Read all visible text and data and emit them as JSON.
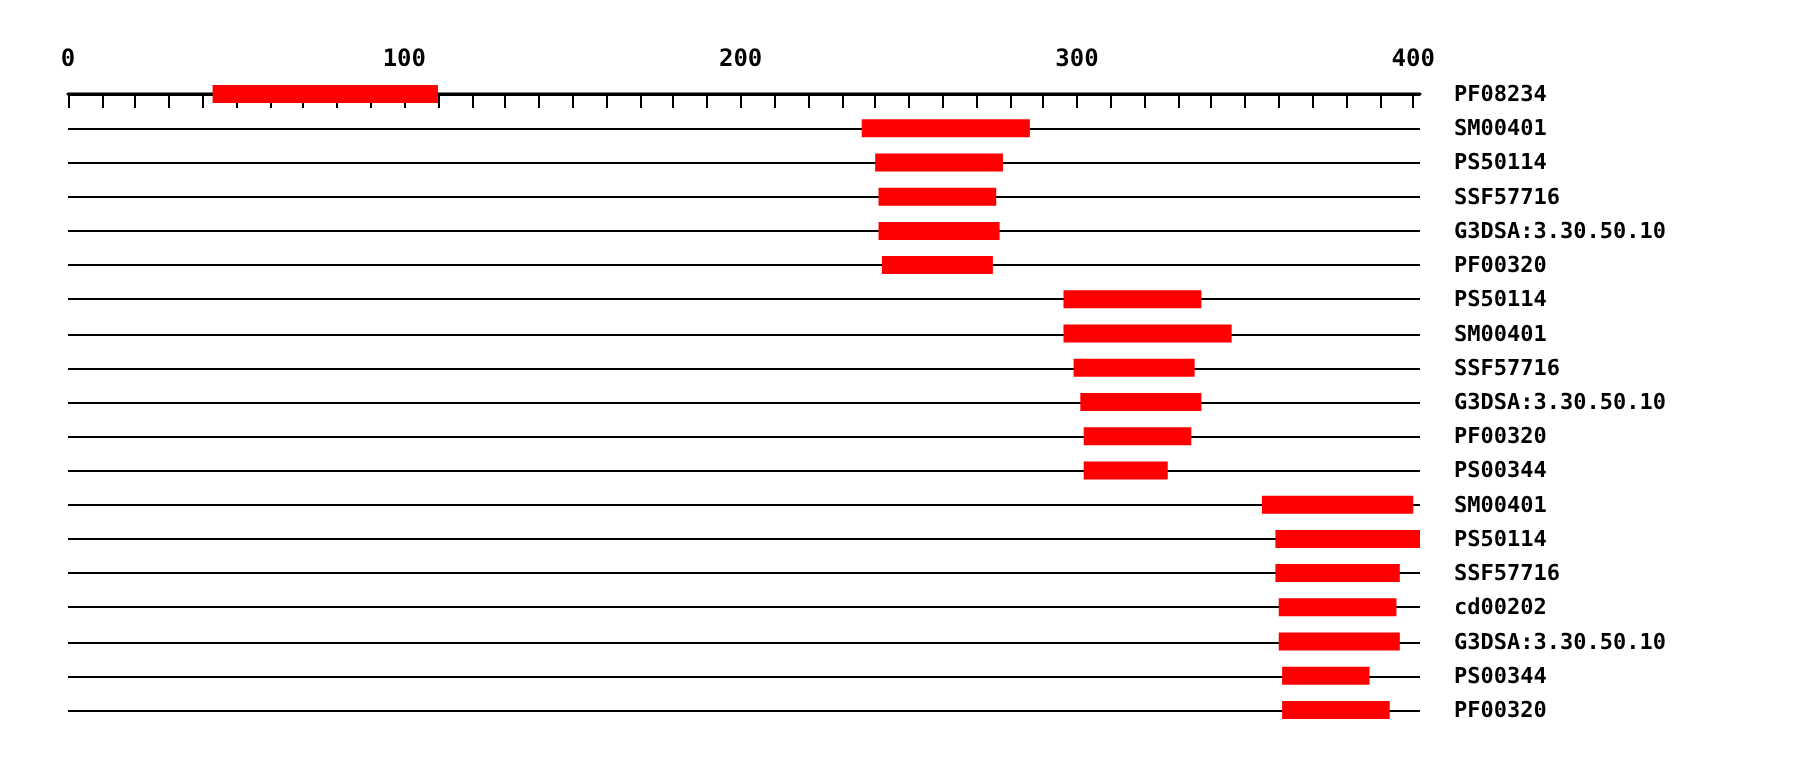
{
  "chart_data": {
    "type": "bar",
    "orientation": "horizontal",
    "categories": [
      "PF08234",
      "SM00401",
      "PS50114",
      "SSF57716",
      "G3DSA:3.30.50.10",
      "PF00320",
      "PS50114",
      "SM00401",
      "SSF57716",
      "G3DSA:3.30.50.10",
      "PF00320",
      "PS00344",
      "SM00401",
      "PS50114",
      "SSF57716",
      "cd00202",
      "G3DSA:3.30.50.10",
      "PS00344",
      "PF00320"
    ],
    "base": [
      43,
      236,
      240,
      241,
      241,
      242,
      296,
      296,
      299,
      301,
      302,
      302,
      355,
      359,
      359,
      360,
      360,
      361,
      361
    ],
    "values": [
      67,
      50,
      38,
      35,
      36,
      33,
      41,
      50,
      36,
      36,
      32,
      25,
      45,
      43,
      37,
      35,
      36,
      26,
      32
    ],
    "color": "#ff0000",
    "xlim": [
      0,
      402
    ],
    "xticks": [
      0,
      {
        "value": 10,
        "label": null
      },
      {
        "value": 20,
        "label": null
      },
      {
        "value": 30,
        "label": null
      },
      {
        "value": 40,
        "label": null
      },
      {
        "value": 50,
        "label": null
      },
      {
        "value": 60,
        "label": null
      },
      {
        "value": 70,
        "label": null
      },
      {
        "value": 80,
        "label": null
      },
      {
        "value": 90,
        "label": null
      },
      100,
      {
        "value": 110,
        "label": null
      },
      {
        "value": 120,
        "label": null
      },
      {
        "value": 130,
        "label": null
      },
      {
        "value": 140,
        "label": null
      },
      {
        "value": 150,
        "label": null
      },
      {
        "value": 160,
        "label": null
      },
      {
        "value": 170,
        "label": null
      },
      {
        "value": 180,
        "label": null
      },
      {
        "value": 190,
        "label": null
      },
      200,
      {
        "value": 210,
        "label": null
      },
      {
        "value": 220,
        "label": null
      },
      {
        "value": 230,
        "label": null
      },
      {
        "value": 240,
        "label": null
      },
      {
        "value": 250,
        "label": null
      },
      {
        "value": 260,
        "label": null
      },
      {
        "value": 270,
        "label": null
      },
      {
        "value": 280,
        "label": null
      },
      {
        "value": 290,
        "label": null
      },
      300,
      {
        "value": 310,
        "label": null
      },
      {
        "value": 320,
        "label": null
      },
      {
        "value": 330,
        "label": null
      },
      {
        "value": 340,
        "label": null
      },
      {
        "value": 350,
        "label": null
      },
      {
        "value": 360,
        "label": null
      },
      {
        "value": 370,
        "label": null
      },
      {
        "value": 380,
        "label": null
      },
      {
        "value": 390,
        "label": null
      },
      400
    ],
    "grid": "y"
  }
}
